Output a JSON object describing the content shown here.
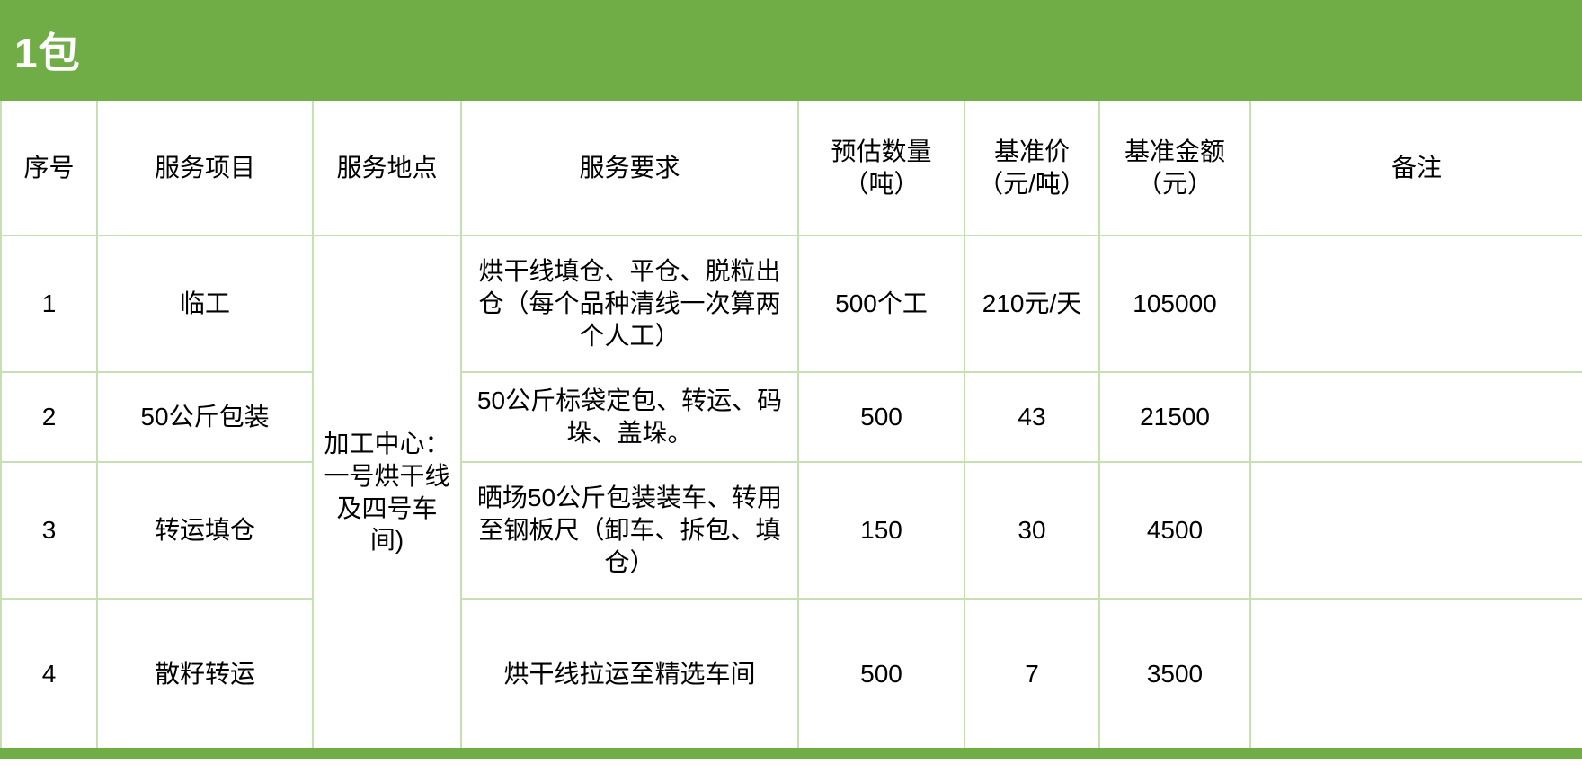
{
  "banner": {
    "title": "1包",
    "bg_color": "#70AD47",
    "text_color": "#FFFFFF"
  },
  "table": {
    "border_color": "#C6E0B4",
    "columns": [
      {
        "key": "index",
        "label": "序号"
      },
      {
        "key": "item",
        "label": "服务项目"
      },
      {
        "key": "location",
        "label": "服务地点"
      },
      {
        "key": "requirement",
        "label": "服务要求"
      },
      {
        "key": "quantity",
        "label": "预估数量\n（吨）"
      },
      {
        "key": "price",
        "label": "基准价\n（元/吨）"
      },
      {
        "key": "amount",
        "label": "基准金额\n（元）"
      },
      {
        "key": "remark",
        "label": "备注"
      }
    ],
    "merged_location": "加工中心：一号烘干线及四号车间)",
    "rows": [
      {
        "index": "1",
        "item": "临工",
        "requirement": "烘干线填仓、平仓、脱粒出仓（每个品种清线一次算两个人工）",
        "quantity": "500个工",
        "price": "210元/天",
        "amount": "105000",
        "remark": ""
      },
      {
        "index": "2",
        "item": "50公斤包装",
        "requirement": "50公斤标袋定包、转运、码垛、盖垛。",
        "quantity": "500",
        "price": "43",
        "amount": "21500",
        "remark": ""
      },
      {
        "index": "3",
        "item": "转运填仓",
        "requirement": "晒场50公斤包装装车、转用至钢板尺（卸车、拆包、填仓）",
        "quantity": "150",
        "price": "30",
        "amount": "4500",
        "remark": ""
      },
      {
        "index": "4",
        "item": "散籽转运",
        "requirement": "烘干线拉运至精选车间",
        "quantity": "500",
        "price": "7",
        "amount": "3500",
        "remark": ""
      }
    ]
  }
}
